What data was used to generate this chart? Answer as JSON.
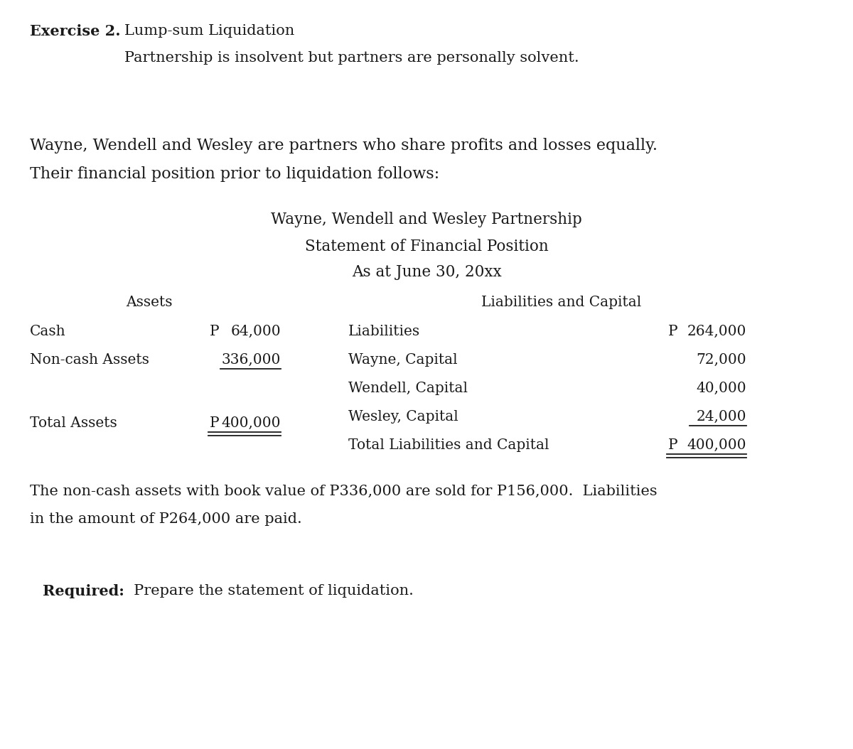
{
  "bg_color": "#ffffff",
  "text_color": "#1a1a1a",
  "fig_width": 12.0,
  "fig_height": 10.54,
  "exercise_label": "Exercise 2.",
  "title1": "Lump-sum Liquidation",
  "title2": "Partnership is insolvent but partners are personally solvent.",
  "intro1": "Wayne, Wendell and Wesley are partners who share profits and losses equally.",
  "intro2": "Their financial position prior to liquidation follows:",
  "firm_name": "Wayne, Wendell and Wesley Partnership",
  "stmt_title": "Statement of Financial Position",
  "stmt_date": "As at June 30, 20xx",
  "assets_header": "Assets",
  "liab_cap_header": "Liabilities and Capital",
  "total_assets_label": "Total Assets",
  "total_assets_prefix": "P",
  "total_assets_value": "400,000",
  "total_liab_cap_label": "Total Liabilities and Capital",
  "total_liab_cap_prefix": "P",
  "total_liab_cap_value": "400,000",
  "note1": "The non-cash assets with book value of P336,000 are sold for P156,000.  Liabilities",
  "note2": "in the amount of P264,000 are paid.",
  "required_label": "Required:",
  "required_text": "  Prepare the statement of liquidation."
}
